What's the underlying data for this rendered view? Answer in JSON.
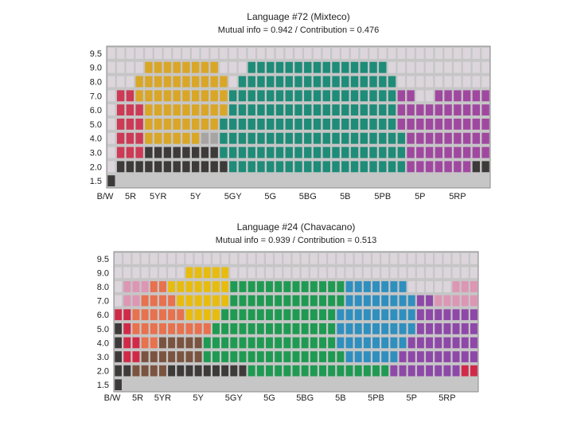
{
  "chart_data": [
    {
      "type": "heatmap",
      "title": "Language #72 (Mixteco)",
      "subtitle": "Mutual info = 0.942 / Contribution = 0.476",
      "x_tick_labels": [
        "B/W",
        "5R",
        "5YR",
        "5Y",
        "5GY",
        "5G",
        "5BG",
        "5B",
        "5PB",
        "5P",
        "5RP"
      ],
      "y_tick_labels": [
        "9.5",
        "9.0",
        "8.0",
        "7.0",
        "6.0",
        "5.0",
        "4.0",
        "3.0",
        "2.0",
        "1.5"
      ],
      "background_color": "#c6c6c6",
      "categories": [
        {
          "name": "white",
          "color": "#dcd6dc"
        },
        {
          "name": "yellow",
          "color": "#d9a627"
        },
        {
          "name": "green",
          "color": "#1e8c78"
        },
        {
          "name": "red",
          "color": "#cc3a55"
        },
        {
          "name": "purple",
          "color": "#a048a0"
        },
        {
          "name": "black",
          "color": "#3e3a3a"
        },
        {
          "name": "grey",
          "color": "#a8a4a4"
        }
      ],
      "cells": [
        "WWWWWWWWWWWWWWWWWWWWWWWWWWWWWWWWWWWWWWWWW",
        "WWWWYYYYYYYYWWWGGGGGGGGGGGGGGGWWWWWWWWWWW",
        "WWWYYYYYYYYYYWGGGGGGGGGGGGGGGGGWWWWWWWWWW",
        "WRRYYYYYYYYYYGGGGGGGGGGGGGGGGGGPPWWPPPPPP",
        "WRRRYYYYYYYYYGGGGGGGGGGGGGGGGGGPPPPPPPPPP",
        "WRRRYYYYYYYYGGGGGGGGGGGGGGGGGGGPPPPPPPPPP",
        "WRRRYYYYYYXXGGGGGGGGGGGGGGGGGGGGPPPPPPPPP",
        "WRRRKKKKKKKKGGGGGGGGGGGGGGGGGGGGPPPPPPPPP",
        "WKKKKKKKKKKKKGGGGGGGGGGGGGGGGGGGPPPPPPPKK",
        "K........................................"
      ]
    },
    {
      "type": "heatmap",
      "title": "Language #24 (Chavacano)",
      "subtitle": "Mutual info = 0.939 / Contribution = 0.513",
      "x_tick_labels": [
        "B/W",
        "5R",
        "5YR",
        "5Y",
        "5GY",
        "5G",
        "5BG",
        "5B",
        "5PB",
        "5P",
        "5RP"
      ],
      "y_tick_labels": [
        "9.5",
        "9.0",
        "8.0",
        "7.0",
        "6.0",
        "5.0",
        "4.0",
        "3.0",
        "2.0",
        "1.5"
      ],
      "background_color": "#c6c6c6",
      "categories": [
        {
          "name": "white",
          "color": "#dcd6dc"
        },
        {
          "name": "pink",
          "color": "#dd96b4"
        },
        {
          "name": "orange",
          "color": "#e8714e"
        },
        {
          "name": "yellow",
          "color": "#e8bc0e"
        },
        {
          "name": "green",
          "color": "#1f9a52"
        },
        {
          "name": "blue",
          "color": "#2f8fbf"
        },
        {
          "name": "purple",
          "color": "#8e48a8"
        },
        {
          "name": "red",
          "color": "#d02a48"
        },
        {
          "name": "brown",
          "color": "#7a5440"
        },
        {
          "name": "black",
          "color": "#3e3a3a"
        }
      ],
      "cells": [
        "WWWWWWWWWWWWWWWWWWWWWWWWWWWWWWWWWWWWWWWWW",
        "WWWWWWWWYYYYYWWWWWWWWWWWWWWWWWWWWWWWWWWWW",
        "WPPPOOYYYYYYYGGGGGGGGGGGGGBBBBBBBWWWWWPPPP",
        "WPPOOOOYYYYYYGGGGGGGGGGGGGBBBBBBBBUUPPPPPP",
        "RROOOOOOYYYYGGGGGGGGGGGGGBBBBBBBBBUUUUUUUR",
        "KROOOOOOOOOGGGGGGGGGGGGGGBBBBBBBBBUUUUUUUR",
        "KRROONNNNNGGGGGGGGGGGGGGGBBBBBBBBUUUUUUUUR",
        "KRRNNNNNNNGGGGGGGGGGGGGGGGBBBBBBUUUUUUUUUR",
        "KKNNNNKKKKKKKKKGGGGGGGGGGGGGGGGUUUUUUUURRR",
        "K........................................"
      ]
    }
  ]
}
